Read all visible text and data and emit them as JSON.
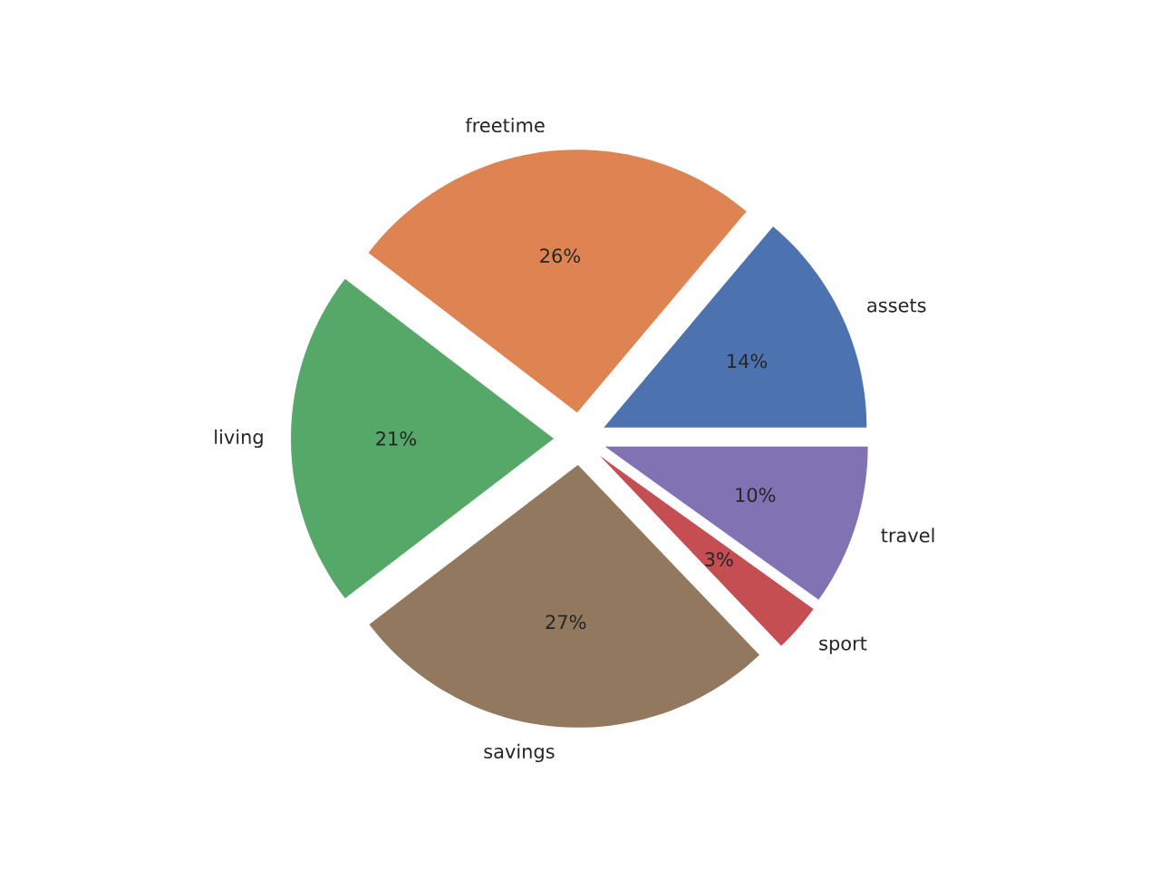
{
  "chart_data": {
    "type": "pie",
    "categories": [
      "assets",
      "freetime",
      "living",
      "savings",
      "sport",
      "travel"
    ],
    "values": [
      14,
      26,
      21,
      27,
      3,
      10
    ],
    "value_labels": [
      "14%",
      "26%",
      "21%",
      "27%",
      "3%",
      "10%"
    ],
    "colors": [
      "#4c72b0",
      "#dd8452",
      "#55a868",
      "#937860",
      "#c44e52",
      "#8172b3"
    ]
  }
}
